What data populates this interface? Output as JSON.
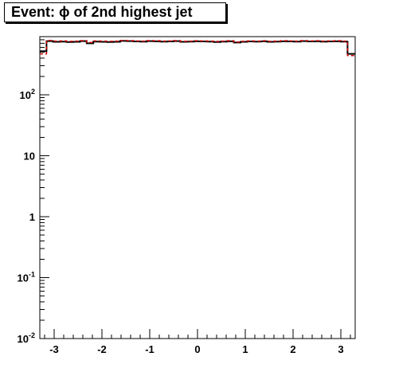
{
  "title": "Event: ϕ of 2nd highest jet",
  "chart_data": {
    "type": "histogram",
    "title": "Event: ϕ of 2nd highest jet",
    "xlabel": "",
    "ylabel": "",
    "xlim": [
      -3.3,
      3.3
    ],
    "ylim": [
      0.01,
      900
    ],
    "y_scale": "log",
    "grid": false,
    "legend": "none",
    "x_ticks": [
      {
        "value": -3,
        "label": "-3"
      },
      {
        "value": -2,
        "label": "-2"
      },
      {
        "value": -1,
        "label": "-1"
      },
      {
        "value": 0,
        "label": "0"
      },
      {
        "value": 1,
        "label": "1"
      },
      {
        "value": 2,
        "label": "2"
      },
      {
        "value": 3,
        "label": "3"
      }
    ],
    "y_ticks": [
      {
        "value": 0.01,
        "base": "10",
        "exp": "-2"
      },
      {
        "value": 0.1,
        "base": "10",
        "exp": "-1"
      },
      {
        "value": 1,
        "base": "1",
        "exp": ""
      },
      {
        "value": 10,
        "base": "10",
        "exp": ""
      },
      {
        "value": 100,
        "base": "10",
        "exp": "2"
      }
    ],
    "bin_edges": [
      -3.3,
      -3.16,
      -3.02,
      -2.88,
      -2.74,
      -2.6,
      -2.46,
      -2.32,
      -2.18,
      -2.04,
      -1.9,
      -1.76,
      -1.62,
      -1.48,
      -1.34,
      -1.2,
      -1.06,
      -0.92,
      -0.78,
      -0.64,
      -0.5,
      -0.36,
      -0.22,
      -0.08,
      0.06,
      0.2,
      0.34,
      0.48,
      0.62,
      0.76,
      0.9,
      1.04,
      1.18,
      1.32,
      1.46,
      1.6,
      1.74,
      1.88,
      2.02,
      2.16,
      2.3,
      2.44,
      2.58,
      2.72,
      2.86,
      3.0,
      3.14,
      3.3
    ],
    "series": [
      {
        "color": "#000000",
        "dash": "solid",
        "values": [
          520,
          760,
          740,
          745,
          735,
          740,
          760,
          700,
          745,
          740,
          735,
          740,
          765,
          760,
          750,
          745,
          760,
          755,
          745,
          750,
          760,
          740,
          745,
          755,
          750,
          745,
          735,
          745,
          755,
          720,
          740,
          750,
          745,
          755,
          740,
          745,
          755,
          750,
          745,
          760,
          750,
          755,
          745,
          750,
          755,
          745,
          470
        ]
      },
      {
        "color": "#cc0000",
        "dash": "dashed",
        "values": [
          470,
          780,
          760,
          765,
          755,
          760,
          775,
          720,
          765,
          760,
          755,
          760,
          780,
          775,
          765,
          760,
          775,
          770,
          760,
          765,
          775,
          755,
          760,
          770,
          765,
          760,
          750,
          760,
          770,
          735,
          755,
          765,
          760,
          770,
          755,
          760,
          770,
          765,
          760,
          775,
          765,
          770,
          760,
          765,
          770,
          760,
          440
        ]
      }
    ]
  }
}
